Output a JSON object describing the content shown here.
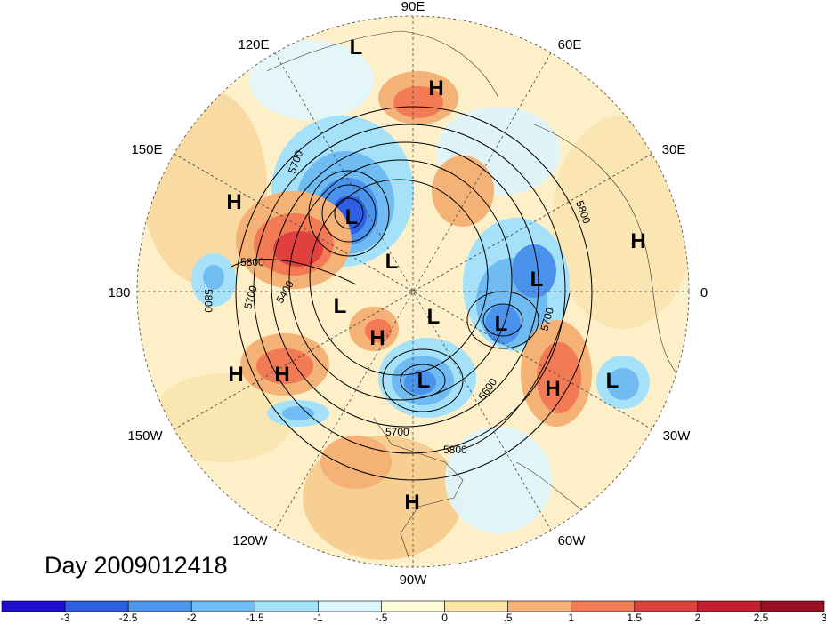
{
  "date_label": "Day 2009012418",
  "longitude_labels": [
    "90E",
    "60E",
    "30E",
    "0",
    "30W",
    "60W",
    "90W",
    "120W",
    "150W",
    "180",
    "150E",
    "120E"
  ],
  "pressure_systems": [
    {
      "type": "L",
      "lon": 105
    },
    {
      "type": "H",
      "lon": 70
    },
    {
      "type": "L",
      "lon": 140
    },
    {
      "type": "H",
      "lon": 158
    },
    {
      "type": "H",
      "lon": 10
    },
    {
      "type": "L",
      "lon": -175
    },
    {
      "type": "L",
      "lon": 10
    },
    {
      "type": "L",
      "lon": -45
    },
    {
      "type": "L",
      "lon": -120
    },
    {
      "type": "H",
      "lon": -105
    },
    {
      "type": "L",
      "lon": -80
    },
    {
      "type": "H",
      "lon": -155
    },
    {
      "type": "H",
      "lon": -145
    },
    {
      "type": "H",
      "lon": -35
    },
    {
      "type": "L",
      "lon": -25
    },
    {
      "type": "H",
      "lon": -90
    }
  ],
  "contour_labels": [
    "5800",
    "5700",
    "5400",
    "5800",
    "5700",
    "5800",
    "5700",
    "5600",
    "5700",
    "5800"
  ],
  "colorbar": {
    "colors": [
      "#1e0fd0",
      "#2d5ee3",
      "#4d95ed",
      "#70bdf3",
      "#a4e1fb",
      "#dcf6fd",
      "#fefcd9",
      "#fbe4a6",
      "#f5b277",
      "#f27a55",
      "#e0403e",
      "#c31f2e",
      "#9c0f22"
    ],
    "ticks": [
      "-3",
      "-2.5",
      "-2",
      "-1.5",
      "-1",
      "-.5",
      "0",
      ".5",
      "1",
      "1.5",
      "2",
      "2.5",
      "3"
    ]
  },
  "colors": {
    "background": "#ffffff",
    "neutral_fill": "#fdf3cf"
  }
}
